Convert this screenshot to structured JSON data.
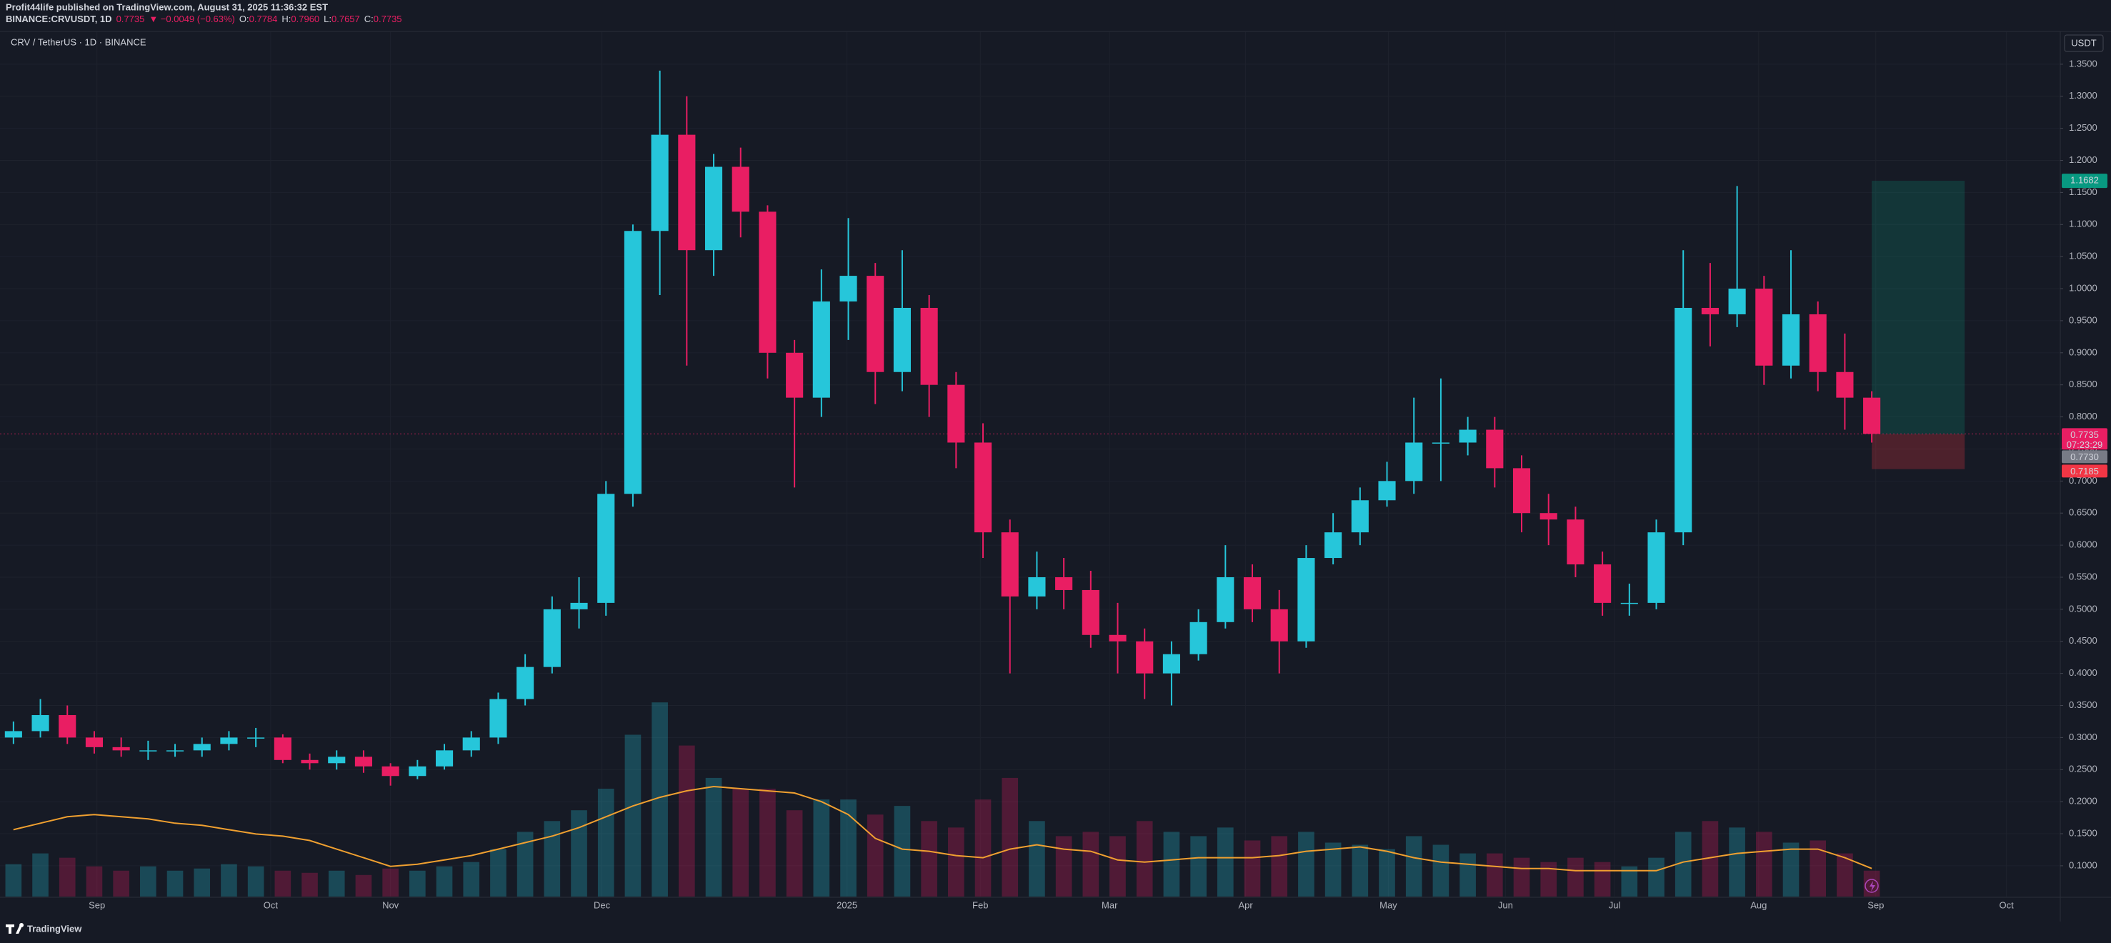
{
  "chart_data": {
    "type": "candlestick",
    "title": "Profit44life published on TradingView.com, August 31, 2025 11:36:32 EST",
    "quote": {
      "symbol": "BINANCE:CRVUSDT, 1D",
      "last": 0.7735,
      "change": "▼ −0.0049 (−0.63%)",
      "fields": [
        {
          "name": "O:",
          "value": 0.7784
        },
        {
          "name": "H:",
          "value": {
            "value": 0.796,
            "label": "0.7960"
          }
        },
        {
          "name": "L:",
          "value": 0.7657
        },
        {
          "name": "C:",
          "value": 0.7735
        }
      ]
    },
    "legend": "CRV / TetherUS · 1D · BINANCE",
    "currency": "USDT",
    "countdown": "07:23:29",
    "brand": "TradingView",
    "up_color": "#26c6da",
    "down_color": "#e91e63",
    "ma_color": "#f0a030",
    "open": [
      0.3,
      0.31,
      0.335,
      0.3,
      0.285,
      0.28,
      0.28,
      0.28,
      0.29,
      0.3,
      0.3,
      0.265,
      0.26,
      0.27,
      0.255,
      0.24,
      0.255,
      0.28,
      0.3,
      0.36,
      0.41,
      0.5,
      0.51,
      0.68,
      1.09,
      1.24,
      1.06,
      1.19,
      1.12,
      0.9,
      0.83,
      0.98,
      1.02,
      0.87,
      0.97,
      0.85,
      0.76,
      0.62,
      0.52,
      0.55,
      0.53,
      0.46,
      0.45,
      0.4,
      0.43,
      0.48,
      0.55,
      0.5,
      0.45,
      0.58,
      0.62,
      0.67,
      0.7,
      0.76,
      0.76,
      0.78,
      0.72,
      0.65,
      0.64,
      0.57,
      0.51,
      0.51,
      0.62,
      0.97,
      0.96,
      1.0,
      0.88,
      0.96,
      0.87,
      0.83
    ],
    "high": [
      0.325,
      0.36,
      0.35,
      0.31,
      0.3,
      0.295,
      0.29,
      0.3,
      0.31,
      0.315,
      0.305,
      0.275,
      0.28,
      0.28,
      0.26,
      0.265,
      0.29,
      0.31,
      0.37,
      0.43,
      0.52,
      0.55,
      0.7,
      1.1,
      1.34,
      1.3,
      1.21,
      1.22,
      1.13,
      0.92,
      1.03,
      1.11,
      1.04,
      1.06,
      0.99,
      0.87,
      0.79,
      0.64,
      0.59,
      0.58,
      0.56,
      0.51,
      0.47,
      0.45,
      0.5,
      0.6,
      0.57,
      0.53,
      0.6,
      0.65,
      0.69,
      0.73,
      0.83,
      0.86,
      0.8,
      0.8,
      0.74,
      0.68,
      0.66,
      0.59,
      0.54,
      0.64,
      1.06,
      1.04,
      1.16,
      1.02,
      1.06,
      0.98,
      0.93,
      0.84
    ],
    "low": [
      0.29,
      0.3,
      0.29,
      0.275,
      0.27,
      0.265,
      0.27,
      0.27,
      0.28,
      0.285,
      0.26,
      0.25,
      0.25,
      0.245,
      0.225,
      0.235,
      0.25,
      0.27,
      0.29,
      0.35,
      0.4,
      0.47,
      0.49,
      0.66,
      0.99,
      0.88,
      1.02,
      1.08,
      0.86,
      0.69,
      0.8,
      0.92,
      0.82,
      0.84,
      0.8,
      0.72,
      0.58,
      0.4,
      0.5,
      0.5,
      0.44,
      0.4,
      0.36,
      0.35,
      0.42,
      0.47,
      0.48,
      0.4,
      0.44,
      0.57,
      0.6,
      0.66,
      0.68,
      0.7,
      0.74,
      0.69,
      0.62,
      0.6,
      0.55,
      0.49,
      0.49,
      0.5,
      0.6,
      0.91,
      0.94,
      0.85,
      0.86,
      0.84,
      0.78,
      0.76
    ],
    "close": [
      0.31,
      0.335,
      0.3,
      0.285,
      0.28,
      0.28,
      0.28,
      0.29,
      0.3,
      0.3,
      0.265,
      0.26,
      0.27,
      0.255,
      0.24,
      0.255,
      0.28,
      0.3,
      0.36,
      0.41,
      0.5,
      0.51,
      0.68,
      1.09,
      1.24,
      1.06,
      1.19,
      1.12,
      0.9,
      0.83,
      0.98,
      1.02,
      0.87,
      0.97,
      0.85,
      0.76,
      0.62,
      0.52,
      0.55,
      0.53,
      0.46,
      0.45,
      0.4,
      0.43,
      0.48,
      0.55,
      0.5,
      0.45,
      0.58,
      0.62,
      0.67,
      0.7,
      0.76,
      0.76,
      0.78,
      0.72,
      0.65,
      0.64,
      0.57,
      0.51,
      0.51,
      0.62,
      0.97,
      0.96,
      1.0,
      0.88,
      0.96,
      0.87,
      0.83,
      0.7735
    ],
    "volume": [
      15,
      20,
      18,
      14,
      12,
      14,
      12,
      13,
      15,
      14,
      12,
      11,
      12,
      10,
      13,
      12,
      14,
      16,
      22,
      30,
      35,
      40,
      50,
      75,
      90,
      70,
      55,
      50,
      50,
      40,
      45,
      45,
      38,
      42,
      35,
      32,
      45,
      55,
      35,
      28,
      30,
      28,
      35,
      30,
      28,
      32,
      26,
      28,
      30,
      25,
      24,
      22,
      28,
      24,
      20,
      20,
      18,
      16,
      18,
      16,
      14,
      18,
      30,
      35,
      32,
      30,
      25,
      26,
      20,
      12
    ],
    "volume_ma": [
      31,
      34,
      37,
      38,
      37,
      36,
      34,
      33,
      31,
      29,
      28,
      26,
      22,
      18,
      14,
      15,
      17,
      19,
      22,
      25,
      28,
      32,
      37,
      42,
      46,
      49,
      51,
      50,
      49,
      48,
      44,
      38,
      27,
      22,
      21,
      19,
      18,
      22,
      24,
      22,
      21,
      17,
      16,
      17,
      18,
      18,
      18,
      19,
      21,
      22,
      23,
      21,
      18,
      16,
      15,
      14,
      13,
      13,
      12,
      12,
      12,
      12,
      16,
      18,
      20,
      21,
      22,
      22,
      18,
      13
    ],
    "xlim": [
      -0.5,
      76
    ],
    "xticks": [
      {
        "value": 3.1,
        "label": "Sep"
      },
      {
        "value": 9.55,
        "label": "Oct"
      },
      {
        "value": 14,
        "label": "Nov"
      },
      {
        "value": 21.85,
        "label": "Dec"
      },
      {
        "value": 30.95,
        "label": "2025"
      },
      {
        "value": 35.9,
        "label": "Feb"
      },
      {
        "value": 40.7,
        "label": "Mar"
      },
      {
        "value": 45.75,
        "label": "Apr"
      },
      {
        "value": 51.05,
        "label": "May"
      },
      {
        "value": 55.4,
        "label": "Jun"
      },
      {
        "value": 59.45,
        "label": "Jul"
      },
      {
        "value": 64.8,
        "label": "Aug"
      },
      {
        "value": 69.15,
        "label": "Sep"
      },
      {
        "value": 74,
        "label": "Oct"
      }
    ],
    "ylim": [
      0.052,
      1.4
    ],
    "yticks": [
      {
        "value": 0.1,
        "label": "0.1000"
      },
      {
        "value": 0.15,
        "label": "0.1500"
      },
      {
        "value": 0.2,
        "label": "0.2000"
      },
      {
        "value": 0.25,
        "label": "0.2500"
      },
      {
        "value": 0.3,
        "label": "0.3000"
      },
      {
        "value": 0.35,
        "label": "0.3500"
      },
      {
        "value": 0.4,
        "label": "0.4000"
      },
      {
        "value": 0.45,
        "label": "0.4500"
      },
      {
        "value": 0.5,
        "label": "0.5000"
      },
      {
        "value": 0.55,
        "label": "0.5500"
      },
      {
        "value": 0.6,
        "label": "0.6000"
      },
      {
        "value": 0.65,
        "label": "0.6500"
      },
      {
        "value": 0.7,
        "label": "0.7000"
      },
      {
        "value": 0.75,
        "label": "0.7500"
      },
      {
        "value": 0.8,
        "label": "0.8000"
      },
      {
        "value": 0.85,
        "label": "0.8500"
      },
      {
        "value": 0.9,
        "label": "0.9000"
      },
      {
        "value": 0.95,
        "label": "0.9500"
      },
      {
        "value": 1.0,
        "label": "1.0000"
      },
      {
        "value": 1.05,
        "label": "1.0500"
      },
      {
        "value": 1.1,
        "label": "1.1000"
      },
      {
        "value": 1.15,
        "label": "1.1500"
      },
      {
        "value": 1.2,
        "label": "1.2000"
      },
      {
        "value": 1.25,
        "label": "1.2500"
      },
      {
        "value": 1.3,
        "label": "1.3000"
      },
      {
        "value": 1.35,
        "label": "1.3500"
      }
    ],
    "grid": true,
    "position": {
      "start": 69,
      "end": 72.45,
      "target": 1.1682,
      "entry": {
        "value": 0.773,
        "label": "0.7730"
      },
      "stop": 0.7185,
      "target_color": "#089981",
      "stop_color": "#f23645"
    }
  }
}
